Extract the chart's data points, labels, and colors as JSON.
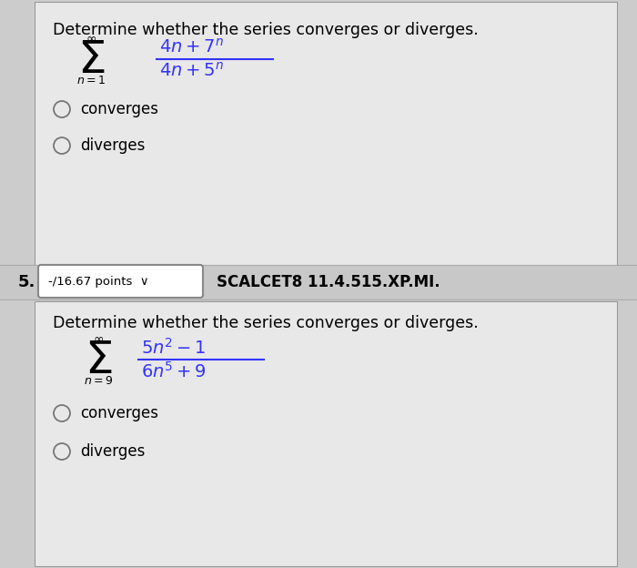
{
  "bg_color": "#cccccc",
  "panel_color": "#e8e8e8",
  "mid_color": "#c8c8c8",
  "title1": "Determine whether the series converges or diverges.",
  "title2": "Determine whether the series converges or diverges.",
  "problem5_label": "5.",
  "points_label": "-/16.67 points  ∨",
  "course_label": "SCALCET8 11.4.515.XP.MI.",
  "converges": "converges",
  "diverges": "diverges"
}
